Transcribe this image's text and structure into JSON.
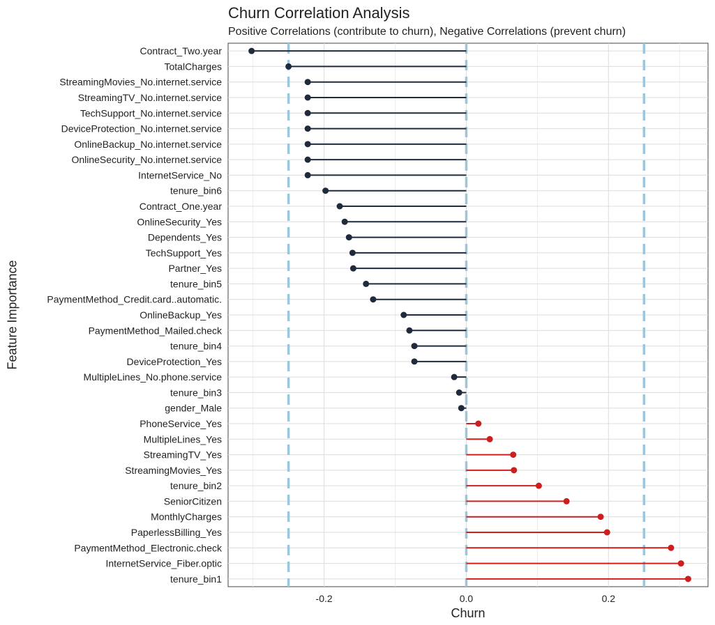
{
  "chart_data": {
    "type": "lollipop",
    "title": "Churn Correlation Analysis",
    "subtitle": "Positive Correlations (contribute to churn), Negative Correlations (prevent churn)",
    "xlabel": "Churn",
    "ylabel": "Feature Importance",
    "xlim": [
      -0.335,
      0.34
    ],
    "x_ticks": [
      -0.2,
      0.0,
      0.2
    ],
    "x_tick_labels": [
      "-0.2",
      "0.0",
      "0.2"
    ],
    "reference_lines": [
      -0.25,
      0,
      0.25
    ],
    "grid": true,
    "colors": {
      "negative": "#1f2a3c",
      "positive": "#cc1f1f",
      "reference": "#9ec6db",
      "grid": "#dcdcdc"
    },
    "categories": [
      "Contract_Two.year",
      "TotalCharges",
      "StreamingMovies_No.internet.service",
      "StreamingTV_No.internet.service",
      "TechSupport_No.internet.service",
      "DeviceProtection_No.internet.service",
      "OnlineBackup_No.internet.service",
      "OnlineSecurity_No.internet.service",
      "InternetService_No",
      "tenure_bin6",
      "Contract_One.year",
      "OnlineSecurity_Yes",
      "Dependents_Yes",
      "TechSupport_Yes",
      "Partner_Yes",
      "tenure_bin5",
      "PaymentMethod_Credit.card..automatic.",
      "OnlineBackup_Yes",
      "PaymentMethod_Mailed.check",
      "tenure_bin4",
      "DeviceProtection_Yes",
      "MultipleLines_No.phone.service",
      "tenure_bin3",
      "gender_Male",
      "PhoneService_Yes",
      "MultipleLines_Yes",
      "StreamingTV_Yes",
      "StreamingMovies_Yes",
      "tenure_bin2",
      "SeniorCitizen",
      "MonthlyCharges",
      "PaperlessBilling_Yes",
      "PaymentMethod_Electronic.check",
      "InternetService_Fiber.optic",
      "tenure_bin1"
    ],
    "values": [
      -0.302,
      -0.25,
      -0.223,
      -0.223,
      -0.223,
      -0.223,
      -0.223,
      -0.223,
      -0.223,
      -0.198,
      -0.178,
      -0.171,
      -0.165,
      -0.16,
      -0.159,
      -0.141,
      -0.131,
      -0.088,
      -0.08,
      -0.073,
      -0.073,
      -0.017,
      -0.01,
      -0.007,
      0.017,
      0.033,
      0.066,
      0.067,
      0.102,
      0.141,
      0.189,
      0.198,
      0.288,
      0.302,
      0.312
    ]
  }
}
